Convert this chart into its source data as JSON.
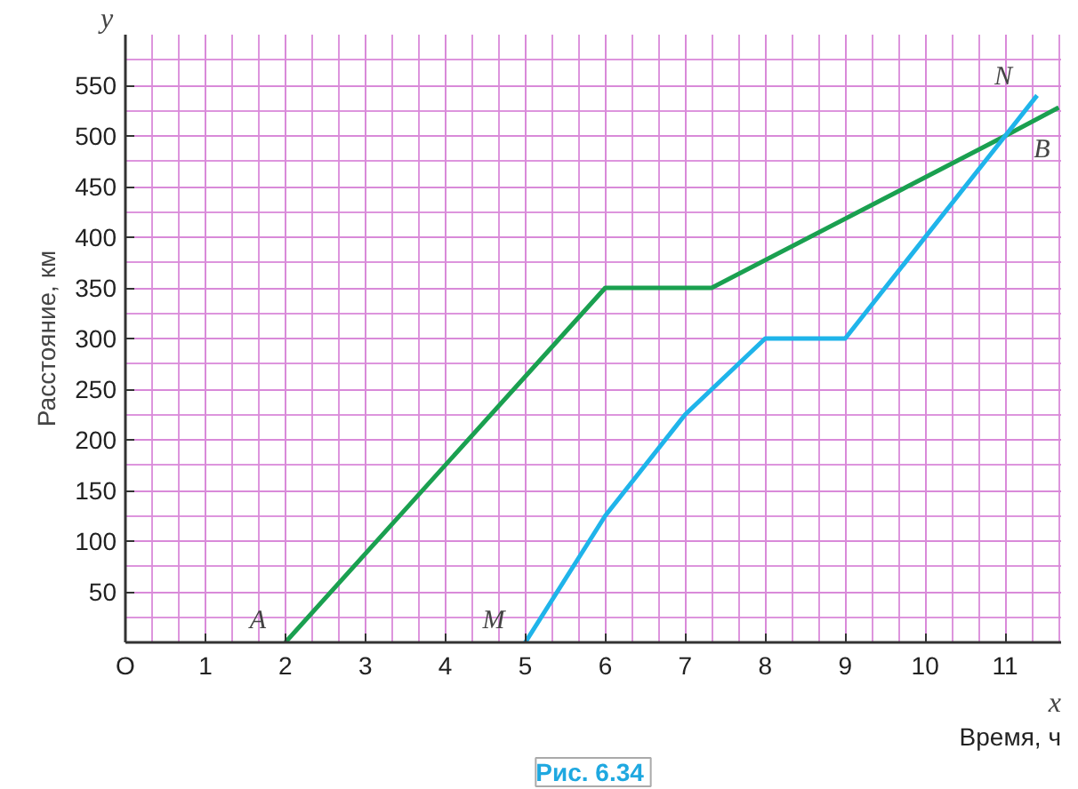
{
  "chart_data": {
    "type": "line",
    "xlabel": "Время, ч",
    "ylabel": "Расстояние, км",
    "xlim": [
      0,
      11.7
    ],
    "ylim": [
      0,
      600
    ],
    "xticks": [
      {
        "value": 0,
        "label": "O"
      },
      1,
      2,
      3,
      4,
      5,
      6,
      7,
      8,
      9,
      10,
      11
    ],
    "yticks": [
      50,
      100,
      150,
      200,
      250,
      300,
      350,
      400,
      450,
      500,
      550
    ],
    "grid": true,
    "marker": "none",
    "line_style": "solid",
    "series": [
      {
        "color": "#1aa050",
        "x": [
          2,
          6,
          7.33,
          11,
          11.67
        ],
        "values": [
          0,
          350,
          350,
          500,
          528
        ]
      },
      {
        "color": "#1fb4ea",
        "x": [
          5,
          6,
          7,
          8,
          9,
          11,
          11.4
        ],
        "values": [
          0,
          125,
          225,
          300,
          300,
          500,
          540
        ]
      }
    ],
    "annotations": [
      {
        "text": "A",
        "x": 2,
        "y": 0
      },
      {
        "text": "M",
        "x": 5,
        "y": 0
      },
      {
        "text": "N",
        "x": 11.4,
        "y": 540
      },
      {
        "text": "B",
        "x": 11.67,
        "y": 528
      },
      "x",
      "y",
      "Рис.  6.34"
    ]
  }
}
